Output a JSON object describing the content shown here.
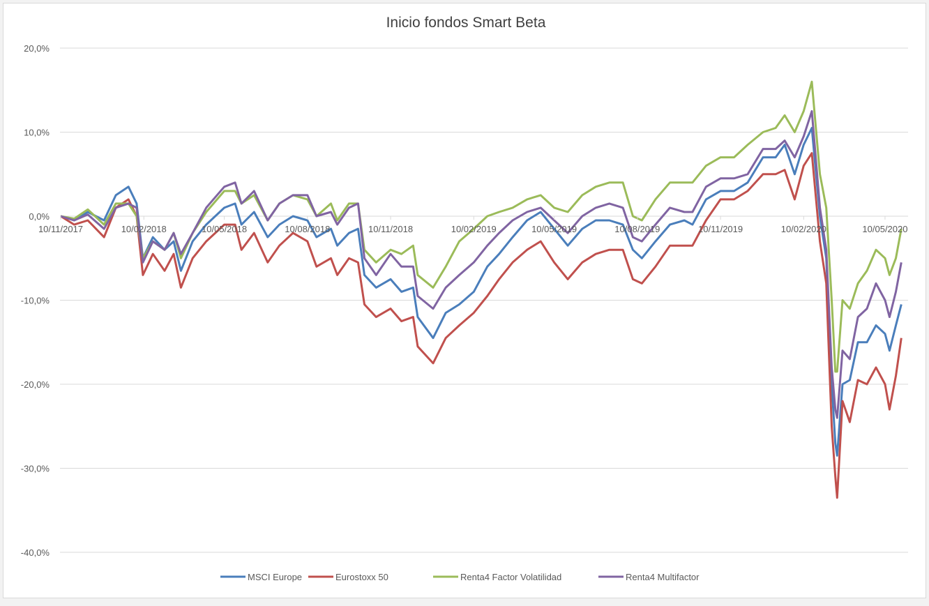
{
  "chart_data": {
    "type": "line",
    "title": "Inicio fondos Smart Beta",
    "xlabel": "",
    "ylabel": "",
    "ylim": [
      -40,
      20
    ],
    "y_ticks": [
      "20,0%",
      "10,0%",
      "0,0%",
      "-10,0%",
      "-20,0%",
      "-30,0%",
      "-40,0%"
    ],
    "y_tick_values": [
      20,
      10,
      0,
      -10,
      -20,
      -30,
      -40
    ],
    "x_ticks": [
      "10/11/2017",
      "10/02/2018",
      "10/05/2018",
      "10/08/2018",
      "10/11/2018",
      "10/02/2019",
      "10/05/2019",
      "10/08/2019",
      "10/11/2019",
      "10/02/2020",
      "10/05/2020"
    ],
    "x_tick_dates": [
      "2017-11-10",
      "2018-02-10",
      "2018-05-10",
      "2018-08-10",
      "2018-11-10",
      "2019-02-10",
      "2019-05-10",
      "2019-08-10",
      "2019-11-10",
      "2020-02-10",
      "2020-05-10"
    ],
    "grid": true,
    "legend_position": "bottom",
    "x": [
      "2017-11-10",
      "2017-11-25",
      "2017-12-10",
      "2017-12-28",
      "2018-01-10",
      "2018-01-24",
      "2018-02-02",
      "2018-02-09",
      "2018-02-20",
      "2018-03-05",
      "2018-03-15",
      "2018-03-23",
      "2018-04-05",
      "2018-04-20",
      "2018-05-10",
      "2018-05-22",
      "2018-05-29",
      "2018-06-12",
      "2018-06-27",
      "2018-07-10",
      "2018-07-25",
      "2018-08-10",
      "2018-08-20",
      "2018-09-05",
      "2018-09-12",
      "2018-09-25",
      "2018-10-05",
      "2018-10-12",
      "2018-10-25",
      "2018-11-10",
      "2018-11-22",
      "2018-12-05",
      "2018-12-10",
      "2018-12-27",
      "2019-01-10",
      "2019-01-25",
      "2019-02-10",
      "2019-02-25",
      "2019-03-10",
      "2019-03-25",
      "2019-04-10",
      "2019-04-25",
      "2019-05-10",
      "2019-05-25",
      "2019-06-10",
      "2019-06-25",
      "2019-07-10",
      "2019-07-25",
      "2019-08-05",
      "2019-08-15",
      "2019-08-30",
      "2019-09-15",
      "2019-10-01",
      "2019-10-10",
      "2019-10-25",
      "2019-11-10",
      "2019-11-25",
      "2019-12-10",
      "2019-12-27",
      "2020-01-10",
      "2020-01-20",
      "2020-01-31",
      "2020-02-10",
      "2020-02-19",
      "2020-02-28",
      "2020-03-06",
      "2020-03-12",
      "2020-03-16",
      "2020-03-18",
      "2020-03-24",
      "2020-04-01",
      "2020-04-10",
      "2020-04-20",
      "2020-04-30",
      "2020-05-10",
      "2020-05-15",
      "2020-05-22",
      "2020-05-28"
    ],
    "series": [
      {
        "name": "MSCI Europe",
        "color": "#4a7ebb",
        "values": [
          0,
          -0.5,
          0.5,
          -0.5,
          2.5,
          3.5,
          1.5,
          -5,
          -2.5,
          -4,
          -3,
          -6.5,
          -3,
          -1,
          1,
          1.5,
          -1,
          0.5,
          -2.5,
          -1,
          0,
          -0.5,
          -2.5,
          -1.5,
          -3.5,
          -2,
          -1.5,
          -7,
          -8.5,
          -7.5,
          -9,
          -8.5,
          -12,
          -14.5,
          -11.5,
          -10.5,
          -9,
          -6,
          -4.5,
          -2.5,
          -0.5,
          0.5,
          -1.5,
          -3.5,
          -1.5,
          -0.5,
          -0.5,
          -1,
          -4,
          -5,
          -3,
          -1,
          -0.5,
          -1,
          2,
          3,
          3,
          4,
          7,
          7,
          8.5,
          5,
          8.5,
          10.5,
          0,
          -5,
          -20,
          -27,
          -28.5,
          -20,
          -19.5,
          -15,
          -15,
          -13,
          -14,
          -16,
          -13,
          -10.5
        ]
      },
      {
        "name": "Eurostoxx 50",
        "color": "#c0504d",
        "values": [
          0,
          -1,
          -0.5,
          -2.5,
          1,
          2,
          0,
          -7,
          -4.5,
          -6.5,
          -4.5,
          -8.5,
          -5,
          -3,
          -1,
          -1,
          -4,
          -2,
          -5.5,
          -3.5,
          -2,
          -3,
          -6,
          -5,
          -7,
          -5,
          -5.5,
          -10.5,
          -12,
          -11,
          -12.5,
          -12,
          -15.5,
          -17.5,
          -14.5,
          -13,
          -11.5,
          -9.5,
          -7.5,
          -5.5,
          -4,
          -3,
          -5.5,
          -7.5,
          -5.5,
          -4.5,
          -4,
          -4,
          -7.5,
          -8,
          -6,
          -3.5,
          -3.5,
          -3.5,
          -0.5,
          2,
          2,
          3,
          5,
          5,
          5.5,
          2,
          6,
          7.5,
          -3,
          -8,
          -25,
          -31,
          -33.5,
          -22,
          -24.5,
          -19.5,
          -20,
          -18,
          -20,
          -23,
          -19,
          -14.5
        ]
      },
      {
        "name": "Renta4 Factor Volatilidad",
        "color": "#9bbb59",
        "values": [
          0,
          -0.3,
          0.8,
          -1,
          1.5,
          1.5,
          0,
          -5,
          -3,
          -4,
          -2,
          -5,
          -2,
          0.5,
          3,
          3,
          1.5,
          2.5,
          -0.5,
          1.5,
          2.5,
          2,
          0,
          1.5,
          -0.5,
          1.5,
          1.5,
          -4,
          -5.5,
          -4,
          -4.5,
          -3.5,
          -7,
          -8.5,
          -6,
          -3,
          -1.5,
          0,
          0.5,
          1,
          2,
          2.5,
          1,
          0.5,
          2.5,
          3.5,
          4,
          4,
          0,
          -0.5,
          2,
          4,
          4,
          4,
          6,
          7,
          7,
          8.5,
          10,
          10.5,
          12,
          10,
          12.5,
          16,
          5,
          1,
          -10,
          -18.5,
          -18.5,
          -10,
          -11,
          -8,
          -6.5,
          -4,
          -5,
          -7,
          -5,
          -1.5
        ]
      },
      {
        "name": "Renta4 Multifactor",
        "color": "#8064a2",
        "values": [
          0,
          -0.5,
          0.2,
          -1.5,
          1,
          1.5,
          1,
          -5.5,
          -3,
          -4,
          -2,
          -4.5,
          -2,
          1,
          3.5,
          4,
          1.5,
          3,
          -0.5,
          1.5,
          2.5,
          2.5,
          0,
          0.5,
          -1,
          1,
          1.5,
          -5,
          -7,
          -4.5,
          -6,
          -6,
          -9.5,
          -11,
          -8.5,
          -7,
          -5.5,
          -3.5,
          -2,
          -0.5,
          0.5,
          1,
          -0.5,
          -2,
          0,
          1,
          1.5,
          1,
          -2.5,
          -3,
          -1,
          1,
          0.5,
          0.5,
          3.5,
          4.5,
          4.5,
          5,
          8,
          8,
          9,
          7,
          9.5,
          12.5,
          1,
          -4,
          -18,
          -23,
          -24,
          -16,
          -17,
          -12,
          -11,
          -8,
          -10,
          -12,
          -9,
          -5.5
        ]
      }
    ]
  }
}
